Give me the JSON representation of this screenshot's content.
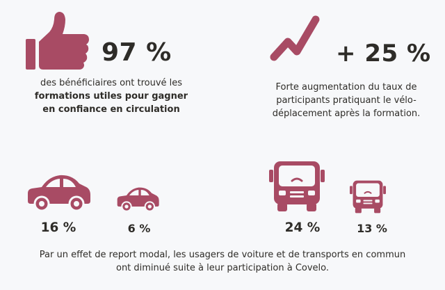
{
  "colors": {
    "accent": "#a84b64",
    "text": "#2e2c28",
    "background": "#f7f8fa"
  },
  "stat_left": {
    "icon": "thumbs-up-icon",
    "value": "97 %",
    "desc_pre": "des bénéficiaires ont trouvé les",
    "desc_bold_1": "formations utiles pour gagner",
    "desc_bold_2": "en confiance en circulation"
  },
  "stat_right": {
    "icon": "trend-up-icon",
    "value": "+ 25 %",
    "desc_1": "Forte augmentation du taux de",
    "desc_2": "participants pratiquant le vélo-",
    "desc_3": "déplacement après la formation."
  },
  "modal": {
    "car_before": {
      "icon": "car-icon",
      "value": "16 %"
    },
    "car_after": {
      "icon": "car-icon",
      "value": "6 %"
    },
    "bus_before": {
      "icon": "bus-icon",
      "value": "24 %"
    },
    "bus_after": {
      "icon": "bus-icon",
      "value": "13 %"
    },
    "note_1": "Par un effet de report modal, les usagers de voiture et de transports en commun",
    "note_2": "ont diminué suite à leur participation à Covelo."
  }
}
